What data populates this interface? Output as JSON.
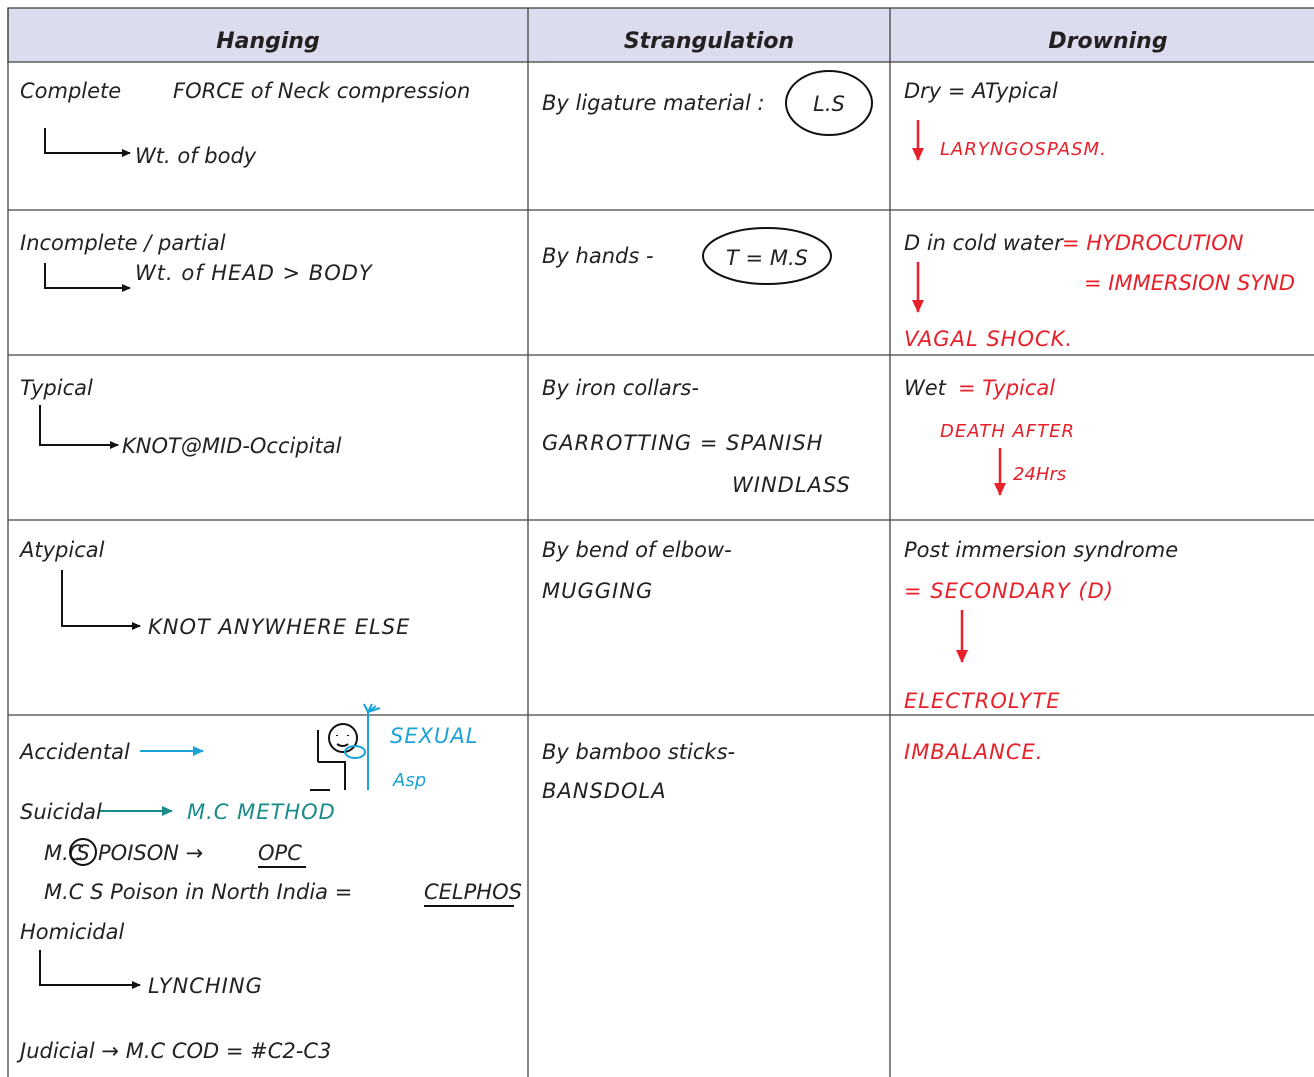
{
  "table": {
    "header": [
      "Hanging",
      "Strangulation",
      "Drowning"
    ],
    "rows": [
      [
        [
          "Complete",
          "FORCE of Neck compression",
          "Wt. of body"
        ],
        [
          "By ligature material :",
          "L.S"
        ],
        [
          "Dry = ATypical",
          "LARYNGOSPASM."
        ]
      ],
      [
        [
          "Incomplete / partial",
          "Wt. of HEAD > BODY"
        ],
        [
          "By hands -",
          "T = M.S"
        ],
        [
          "D in cold water",
          "= HYDROCUTION",
          "= IMMERSION SYND",
          "VAGAL SHOCK."
        ]
      ],
      [
        [
          "Typical",
          "KNOT@MID-Occipital"
        ],
        [
          "By iron collars-",
          "GARROTTING = SPANISH",
          "WINDLASS"
        ],
        [
          "Wet",
          "= Typical",
          "DEATH AFTER",
          "24Hrs"
        ]
      ],
      [
        [
          "Atypical",
          "KNOT ANYWHERE ELSE"
        ],
        [
          "By bend of elbow-",
          "MUGGING"
        ],
        [
          "Post immersion syndrome",
          "= SECONDARY (D)",
          "ELECTROLYTE"
        ]
      ],
      [
        [
          "Accidental",
          "SEXUAL",
          "Asp",
          "Suicidal",
          "M.C METHOD",
          "M.C",
          "S",
          "POISON →",
          "OPC",
          "M.C S Poison in North India =",
          "CELPHOS",
          "Homicidal",
          "LYNCHING",
          "Judicial → M.C COD = #C2-C3"
        ],
        [
          "By bamboo sticks-",
          "BANSDOLA"
        ],
        [
          "IMBALANCE."
        ]
      ]
    ]
  }
}
